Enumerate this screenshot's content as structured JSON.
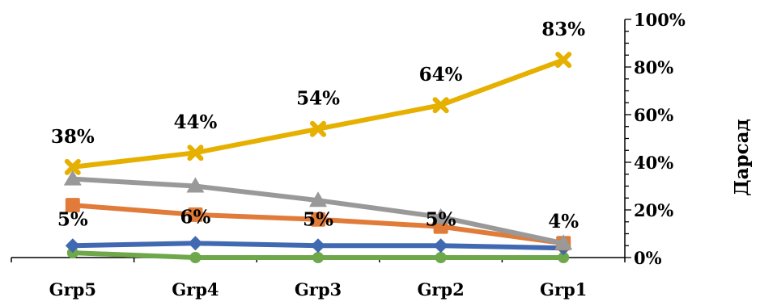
{
  "chart_data": {
    "type": "line",
    "categories": [
      "Grp5",
      "Grp4",
      "Grp3",
      "Grp2",
      "Grp1"
    ],
    "ylabel": "Дарсад",
    "ylim": [
      0,
      100
    ],
    "y_ticks": [
      "0%",
      "20%",
      "40%",
      "60%",
      "80%",
      "100%"
    ],
    "y_axis_side": "right",
    "series": [
      {
        "color": "#4169B1",
        "marker": "diamond",
        "values": [
          5,
          6,
          5,
          5,
          4
        ],
        "labels": [
          "5%",
          "6%",
          "5%",
          "5%",
          "4%"
        ]
      },
      {
        "color": "#E07B39",
        "marker": "square",
        "values": [
          22,
          18,
          16,
          13,
          6
        ]
      },
      {
        "color": "#999999",
        "marker": "triangle",
        "values": [
          33,
          30,
          24,
          17,
          6
        ]
      },
      {
        "color": "#E6B000",
        "marker": "cross",
        "values": [
          38,
          44,
          54,
          64,
          83
        ],
        "labels": [
          "38%",
          "44%",
          "54%",
          "64%",
          "83%"
        ]
      },
      {
        "color": "#6FA84A",
        "marker": "circle",
        "values": [
          2,
          0,
          0,
          0,
          0
        ]
      }
    ]
  }
}
